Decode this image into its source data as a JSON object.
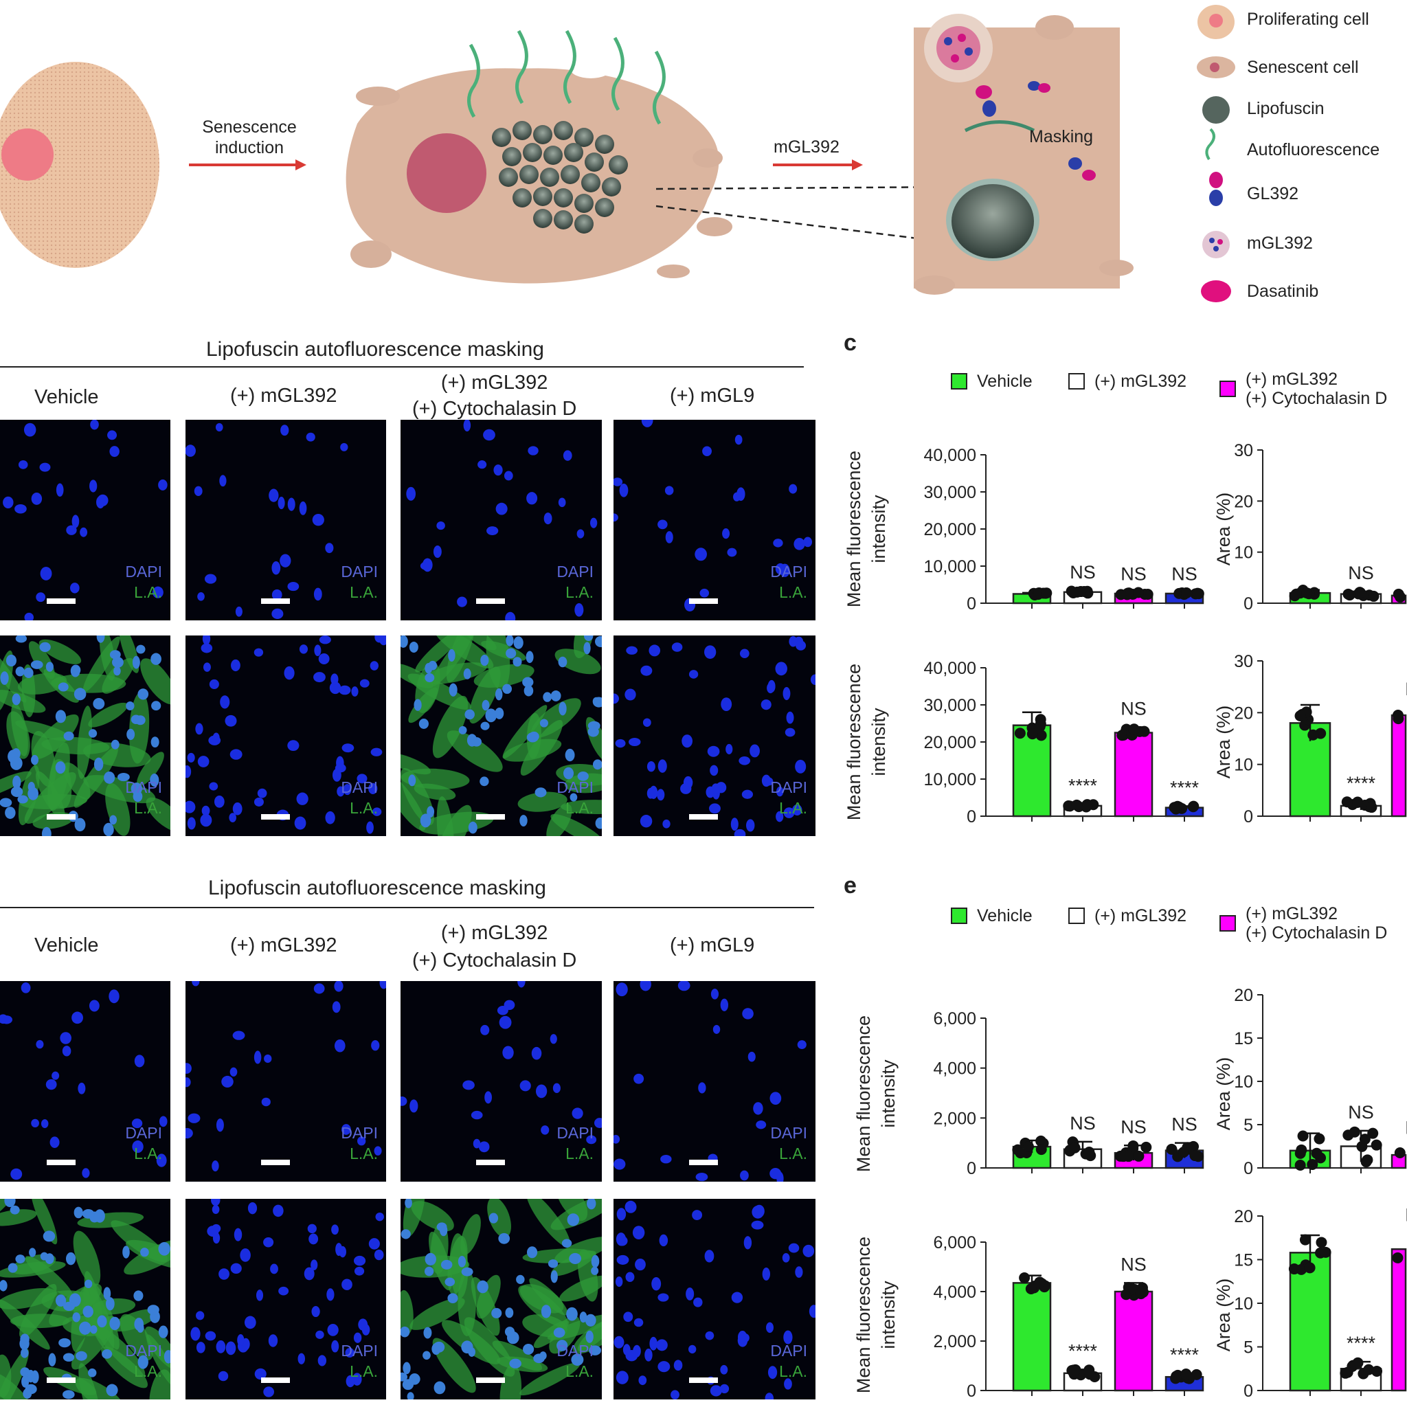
{
  "schematic": {
    "arrow1_label_line1": "Senescence",
    "arrow1_label_line2": "induction",
    "arrow2_label": "mGL392",
    "masking_label": "Masking",
    "legend": [
      {
        "label": "Proliferating cell",
        "icon": "proliferating-cell-icon"
      },
      {
        "label": "Senescent cell",
        "icon": "senescent-cell-icon"
      },
      {
        "label": "Lipofuscin",
        "icon": "lipofuscin-icon"
      },
      {
        "label": "Autofluorescence",
        "icon": "autofluorescence-icon"
      },
      {
        "label": "GL392",
        "icon": "gl392-icon"
      },
      {
        "label": "mGL392",
        "icon": "mgl392-icon"
      },
      {
        "label": "Dasatinib",
        "icon": "dasatinib-icon"
      }
    ]
  },
  "panel_b": {
    "title": "Lipofuscin autofluorescence masking",
    "columns": [
      "Vehicle",
      "(+) mGL392",
      "(+) mGL392",
      "(+) mGL9"
    ],
    "column3_line2": "(+) Cytochalasin D",
    "image_labels": {
      "dapi": "DAPI",
      "la": "L.A."
    }
  },
  "panel_c": {
    "letter": "c",
    "legend": [
      {
        "label": "Vehicle",
        "color": "#2ee82e"
      },
      {
        "label": "(+) mGL392",
        "color": "#ffffff"
      },
      {
        "label": "(+) mGL392",
        "label2": "(+) Cytochalasin D",
        "color": "#ff00ff"
      }
    ]
  },
  "panel_d": {
    "title": "Lipofuscin autofluorescence masking",
    "columns": [
      "Vehicle",
      "(+) mGL392",
      "(+) mGL392",
      "(+) mGL9"
    ],
    "column3_line2": "(+) Cytochalasin D",
    "image_labels": {
      "dapi": "DAPI",
      "la": "L.A."
    }
  },
  "panel_e": {
    "letter": "e",
    "legend": [
      {
        "label": "Vehicle",
        "color": "#2ee82e"
      },
      {
        "label": "(+) mGL392",
        "color": "#ffffff"
      },
      {
        "label": "(+) mGL392",
        "label2": "(+) Cytochalasin D",
        "color": "#ff00ff"
      }
    ]
  },
  "chart_data": [
    {
      "id": "c-mfi-top",
      "type": "bar",
      "ylabel": "Mean fluorescence intensity",
      "ylim": [
        0,
        40000
      ],
      "yticks": [
        "0",
        "10,000",
        "20,000",
        "30,000",
        "40,000"
      ],
      "ytick_values": [
        0,
        10000,
        20000,
        30000,
        40000
      ],
      "values": [
        2500,
        3000,
        2600,
        2600
      ],
      "errors": [
        300,
        300,
        300,
        300
      ],
      "colors": [
        "#2ee82e",
        "#ffffff",
        "#ff00ff",
        "#1f2fd8"
      ],
      "annotations": [
        "",
        "NS",
        "NS",
        "NS"
      ]
    },
    {
      "id": "c-area-top",
      "type": "bar",
      "ylabel": "Area (%)",
      "ylim": [
        0,
        30
      ],
      "yticks": [
        "0",
        "10",
        "20",
        "30"
      ],
      "ytick_values": [
        0,
        10,
        20,
        30
      ],
      "values": [
        2.0,
        1.8,
        1.5
      ],
      "errors": [
        0.6,
        0.5,
        0.4
      ],
      "colors": [
        "#2ee82e",
        "#ffffff",
        "#ff00ff"
      ],
      "annotations": [
        "",
        "NS",
        ""
      ]
    },
    {
      "id": "c-mfi-bottom",
      "type": "bar",
      "ylabel": "Mean fluorescence intensity",
      "ylim": [
        0,
        40000
      ],
      "yticks": [
        "0",
        "10,000",
        "20,000",
        "30,000",
        "40,000"
      ],
      "ytick_values": [
        0,
        10000,
        20000,
        30000,
        40000
      ],
      "values": [
        24500,
        2800,
        22500,
        2300
      ],
      "errors": [
        3500,
        400,
        1500,
        400
      ],
      "colors": [
        "#2ee82e",
        "#ffffff",
        "#ff00ff",
        "#1f2fd8"
      ],
      "annotations": [
        "",
        "****",
        "NS",
        "****"
      ]
    },
    {
      "id": "c-area-bottom",
      "type": "bar",
      "ylabel": "Area (%)",
      "ylim": [
        0,
        30
      ],
      "yticks": [
        "0",
        "10",
        "20",
        "30"
      ],
      "ytick_values": [
        0,
        10,
        20,
        30
      ],
      "values": [
        18.0,
        2.0,
        19.5
      ],
      "errors": [
        3.5,
        0.8,
        1.5
      ],
      "colors": [
        "#2ee82e",
        "#ffffff",
        "#ff00ff"
      ],
      "annotations": [
        "",
        "****",
        "N"
      ]
    },
    {
      "id": "e-mfi-top",
      "type": "bar",
      "ylabel": "Mean fluorescence intensity",
      "ylim": [
        0,
        6000
      ],
      "yticks": [
        "0",
        "2,000",
        "4,000",
        "6,000"
      ],
      "ytick_values": [
        0,
        2000,
        4000,
        6000
      ],
      "values": [
        850,
        750,
        600,
        700
      ],
      "errors": [
        250,
        300,
        300,
        300
      ],
      "colors": [
        "#2ee82e",
        "#ffffff",
        "#ff00ff",
        "#1f2fd8"
      ],
      "annotations": [
        "",
        "NS",
        "NS",
        "NS"
      ]
    },
    {
      "id": "e-area-top",
      "type": "bar",
      "ylabel": "Area (%)",
      "ylim": [
        0,
        20
      ],
      "yticks": [
        "0",
        "5",
        "10",
        "15",
        "20"
      ],
      "ytick_values": [
        0,
        5,
        10,
        15,
        20
      ],
      "values": [
        2.0,
        2.5,
        1.5
      ],
      "errors": [
        2.0,
        1.8,
        1.0
      ],
      "colors": [
        "#2ee82e",
        "#ffffff",
        "#ff00ff"
      ],
      "annotations": [
        "",
        "NS",
        "N"
      ]
    },
    {
      "id": "e-mfi-bottom",
      "type": "bar",
      "ylabel": "Mean fluorescence intensity",
      "ylim": [
        0,
        6000
      ],
      "yticks": [
        "0",
        "2,000",
        "4,000",
        "6,000"
      ],
      "ytick_values": [
        0,
        2000,
        4000,
        6000
      ],
      "values": [
        4350,
        700,
        4000,
        550
      ],
      "errors": [
        300,
        150,
        350,
        150
      ],
      "colors": [
        "#2ee82e",
        "#ffffff",
        "#ff00ff",
        "#1f2fd8"
      ],
      "annotations": [
        "",
        "****",
        "NS",
        "****"
      ]
    },
    {
      "id": "e-area-bottom",
      "type": "bar",
      "ylabel": "Area (%)",
      "ylim": [
        0,
        20
      ],
      "yticks": [
        "0",
        "5",
        "10",
        "15",
        "20"
      ],
      "ytick_values": [
        0,
        5,
        10,
        15,
        20
      ],
      "values": [
        15.8,
        2.5,
        16.2
      ],
      "errors": [
        2.0,
        0.8,
        1.8
      ],
      "colors": [
        "#2ee82e",
        "#ffffff",
        "#ff00ff"
      ],
      "annotations": [
        "",
        "****",
        "N"
      ]
    }
  ]
}
